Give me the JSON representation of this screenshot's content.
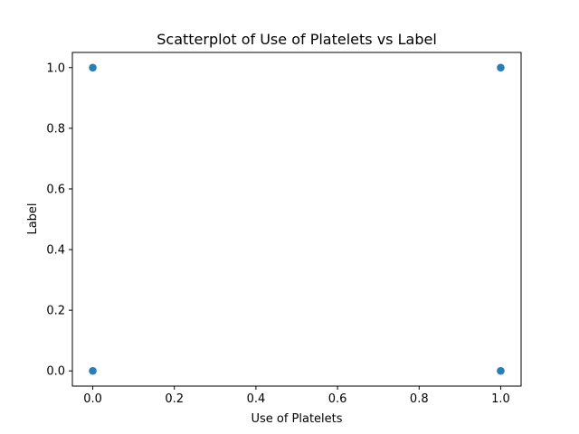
{
  "chart_data": {
    "type": "scatter",
    "title": "Scatterplot of Use of Platelets vs Label",
    "xlabel": "Use of Platelets",
    "ylabel": "Label",
    "xlim": [
      -0.05,
      1.05
    ],
    "ylim": [
      -0.05,
      1.05
    ],
    "xticks": [
      "0.0",
      "0.2",
      "0.4",
      "0.6",
      "0.8",
      "1.0"
    ],
    "yticks": [
      "0.0",
      "0.2",
      "0.4",
      "0.6",
      "0.8",
      "1.0"
    ],
    "grid": false,
    "series": [
      {
        "color": "#1f77b4",
        "points": [
          {
            "x": 0,
            "y": 1
          },
          {
            "x": 0,
            "y": 0
          },
          {
            "x": 1,
            "y": 1
          },
          {
            "x": 1,
            "y": 0
          }
        ]
      }
    ]
  }
}
